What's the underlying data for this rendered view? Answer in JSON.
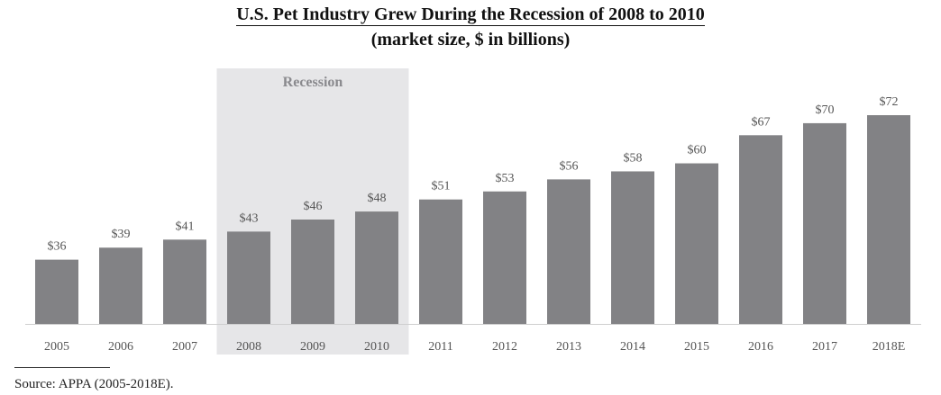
{
  "header": {
    "title": "U.S. Pet Industry Grew During the Recession of 2008 to 2010",
    "subtitle": "(market size, $ in billions)"
  },
  "footer": {
    "source": "Source: APPA (2005-2018E)."
  },
  "colors": {
    "bar": "#828285",
    "recession_band": "#e6e6e8",
    "label_text": "#555555",
    "axis_line": "#cfcfcf"
  },
  "chart_data": {
    "type": "bar",
    "title": "U.S. Pet Industry Grew During the Recession of 2008 to 2010",
    "subtitle": "(market size, $ in billions)",
    "categories": [
      "2005",
      "2006",
      "2007",
      "2008",
      "2009",
      "2010",
      "2011",
      "2012",
      "2013",
      "2014",
      "2015",
      "2016",
      "2017",
      "2018E"
    ],
    "values": [
      36,
      39,
      41,
      43,
      46,
      48,
      51,
      53,
      56,
      58,
      60,
      67,
      70,
      72
    ],
    "data_labels": [
      "$36",
      "$39",
      "$41",
      "$43",
      "$46",
      "$48",
      "$51",
      "$53",
      "$56",
      "$58",
      "$60",
      "$67",
      "$70",
      "$72"
    ],
    "ylim": [
      20,
      72
    ],
    "grid": false,
    "annotations": [
      {
        "type": "shaded-band",
        "label": "Recession",
        "from_category": "2008",
        "to_category": "2010"
      }
    ]
  }
}
